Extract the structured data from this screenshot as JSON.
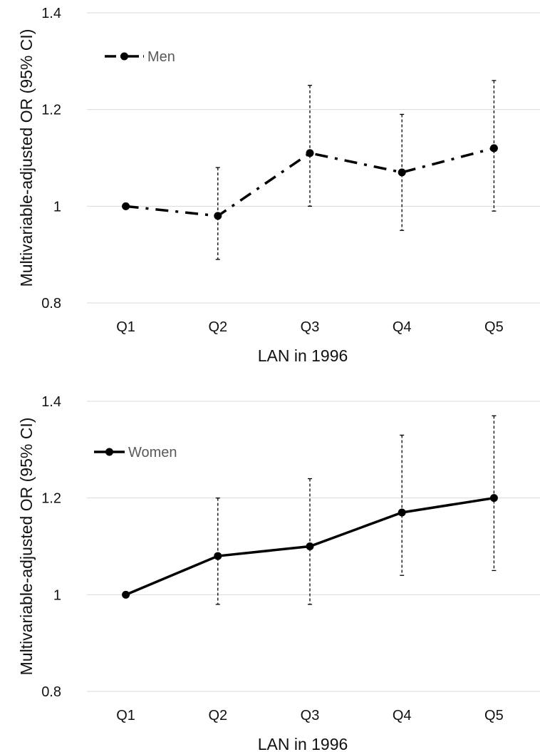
{
  "chart_data": [
    {
      "type": "line",
      "categories": [
        "Q1",
        "Q2",
        "Q3",
        "Q4",
        "Q5"
      ],
      "series": [
        {
          "name": "Men",
          "values": [
            1.0,
            0.98,
            1.11,
            1.07,
            1.12
          ],
          "ci_lower": [
            null,
            0.89,
            1.0,
            0.95,
            0.99
          ],
          "ci_upper": [
            null,
            1.08,
            1.25,
            1.19,
            1.26
          ],
          "line_style": "dash-dot",
          "color": "#000000"
        }
      ],
      "xlabel": "LAN in 1996",
      "ylabel": "Multivariable-adjusted OR (95% CI)",
      "ylim": [
        0.8,
        1.4
      ],
      "yticks": [
        0.8,
        1,
        1.2,
        1.4
      ],
      "ytick_labels": [
        "0.8",
        "1",
        "1.2",
        "1.4"
      ],
      "grid": true,
      "legend_position": "top-left"
    },
    {
      "type": "line",
      "categories": [
        "Q1",
        "Q2",
        "Q3",
        "Q4",
        "Q5"
      ],
      "series": [
        {
          "name": "Women",
          "values": [
            1.0,
            1.08,
            1.1,
            1.17,
            1.2
          ],
          "ci_lower": [
            null,
            0.98,
            0.98,
            1.04,
            1.05
          ],
          "ci_upper": [
            null,
            1.2,
            1.24,
            1.33,
            1.37
          ],
          "line_style": "solid",
          "color": "#000000"
        }
      ],
      "xlabel": "LAN in 1996",
      "ylabel": "Multivariable-adjusted OR (95% CI)",
      "ylim": [
        0.8,
        1.4
      ],
      "yticks": [
        0.8,
        1,
        1.2,
        1.4
      ],
      "ytick_labels": [
        "0.8",
        "1",
        "1.2",
        "1.4"
      ],
      "grid": true,
      "legend_position": "top-left"
    }
  ]
}
